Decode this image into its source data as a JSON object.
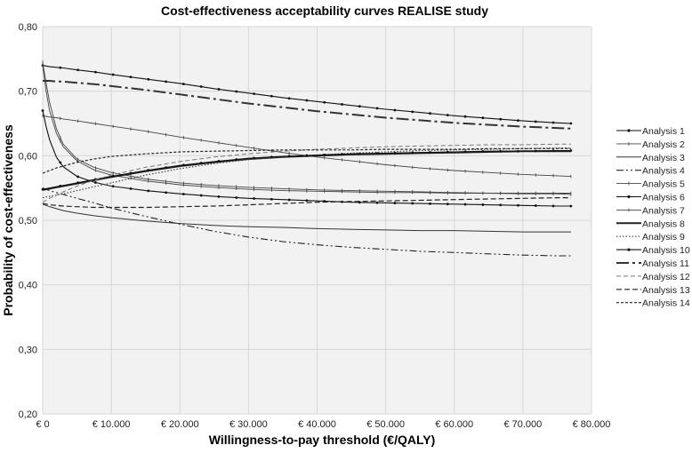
{
  "chart_data": {
    "type": "line",
    "title": "Cost-effectiveness acceptability curves REALISE study",
    "xlabel": "Willingness-to-pay threshold (€/QALY)",
    "ylabel": "Probability of cost-effectiveness",
    "xlim": [
      0,
      80000
    ],
    "ylim": [
      0.2,
      0.8
    ],
    "grid": true,
    "legend_position": "right",
    "x_ticks": [
      0,
      10000,
      20000,
      30000,
      40000,
      50000,
      60000,
      70000,
      80000
    ],
    "x_tick_labels": [
      "€ 0",
      "€ 10.000",
      "€ 20.000",
      "€ 30.000",
      "€ 40.000",
      "€ 50.000",
      "€ 60.000",
      "€ 70.000",
      "€ 80.000"
    ],
    "y_ticks": [
      0.2,
      0.3,
      0.4,
      0.5,
      0.6,
      0.7,
      0.8
    ],
    "y_tick_labels": [
      "0,20",
      "0,30",
      "0,40",
      "0,50",
      "0,60",
      "0,70",
      "0,80"
    ],
    "x": [
      0,
      500,
      1000,
      2000,
      3000,
      5000,
      7500,
      10000,
      15000,
      20000,
      25000,
      30000,
      35000,
      40000,
      45000,
      50000,
      55000,
      60000,
      65000,
      70000,
      75000,
      77000
    ],
    "series": [
      {
        "name": "Analysis 1",
        "style": "solid-dots",
        "values": [
          0.74,
          0.739,
          0.738,
          0.737,
          0.736,
          0.733,
          0.73,
          0.726,
          0.719,
          0.712,
          0.704,
          0.697,
          0.69,
          0.684,
          0.678,
          0.672,
          0.667,
          0.662,
          0.658,
          0.654,
          0.651,
          0.65
        ]
      },
      {
        "name": "Analysis 2",
        "style": "solid-ticks",
        "values": [
          0.662,
          0.661,
          0.66,
          0.659,
          0.657,
          0.654,
          0.65,
          0.646,
          0.638,
          0.629,
          0.621,
          0.613,
          0.605,
          0.598,
          0.592,
          0.586,
          0.581,
          0.577,
          0.574,
          0.571,
          0.569,
          0.568
        ]
      },
      {
        "name": "Analysis 3",
        "style": "solid",
        "values": [
          0.525,
          0.523,
          0.521,
          0.518,
          0.515,
          0.511,
          0.507,
          0.504,
          0.499,
          0.495,
          0.492,
          0.49,
          0.489,
          0.487,
          0.486,
          0.485,
          0.484,
          0.484,
          0.483,
          0.482,
          0.482,
          0.482
        ]
      },
      {
        "name": "Analysis 4",
        "style": "dash-dot-dot",
        "values": [
          0.55,
          0.548,
          0.546,
          0.543,
          0.54,
          0.534,
          0.527,
          0.519,
          0.506,
          0.494,
          0.483,
          0.474,
          0.467,
          0.462,
          0.458,
          0.455,
          0.452,
          0.45,
          0.448,
          0.446,
          0.445,
          0.445
        ]
      },
      {
        "name": "Analysis 5",
        "style": "solid-ticks",
        "values": [
          0.745,
          0.712,
          0.683,
          0.642,
          0.618,
          0.595,
          0.582,
          0.574,
          0.564,
          0.558,
          0.554,
          0.551,
          0.549,
          0.547,
          0.546,
          0.545,
          0.544,
          0.543,
          0.542,
          0.541,
          0.541,
          0.54
        ]
      },
      {
        "name": "Analysis 6",
        "style": "solid-dots",
        "values": [
          0.67,
          0.645,
          0.625,
          0.598,
          0.583,
          0.568,
          0.559,
          0.553,
          0.546,
          0.541,
          0.537,
          0.534,
          0.532,
          0.53,
          0.528,
          0.527,
          0.526,
          0.525,
          0.524,
          0.523,
          0.522,
          0.522
        ]
      },
      {
        "name": "Analysis 7",
        "style": "solid-ticks",
        "values": [
          0.74,
          0.7,
          0.67,
          0.635,
          0.614,
          0.592,
          0.578,
          0.57,
          0.561,
          0.555,
          0.551,
          0.548,
          0.546,
          0.545,
          0.544,
          0.543,
          0.543,
          0.542,
          0.542,
          0.542,
          0.542,
          0.542
        ]
      },
      {
        "name": "Analysis 8",
        "style": "solid-thick",
        "values": [
          0.547,
          0.548,
          0.549,
          0.551,
          0.553,
          0.557,
          0.562,
          0.567,
          0.576,
          0.584,
          0.59,
          0.595,
          0.598,
          0.6,
          0.602,
          0.603,
          0.604,
          0.605,
          0.606,
          0.607,
          0.607,
          0.607
        ]
      },
      {
        "name": "Analysis 9",
        "style": "dotted",
        "values": [
          0.535,
          0.536,
          0.537,
          0.539,
          0.541,
          0.546,
          0.552,
          0.558,
          0.57,
          0.58,
          0.588,
          0.594,
          0.598,
          0.601,
          0.604,
          0.606,
          0.608,
          0.609,
          0.61,
          0.611,
          0.612,
          0.612
        ]
      },
      {
        "name": "Analysis 10",
        "style": "solid-dots",
        "values": [
          0.548,
          0.549,
          0.55,
          0.552,
          0.554,
          0.558,
          0.563,
          0.568,
          0.577,
          0.585,
          0.591,
          0.596,
          0.599,
          0.601,
          0.603,
          0.604,
          0.605,
          0.606,
          0.607,
          0.607,
          0.608,
          0.608
        ]
      },
      {
        "name": "Analysis 11",
        "style": "long-dash-dot",
        "values": [
          0.716,
          0.716,
          0.716,
          0.715,
          0.715,
          0.713,
          0.711,
          0.708,
          0.702,
          0.695,
          0.688,
          0.681,
          0.675,
          0.669,
          0.664,
          0.659,
          0.655,
          0.651,
          0.648,
          0.645,
          0.643,
          0.642
        ]
      },
      {
        "name": "Analysis 12",
        "style": "dashed-light",
        "values": [
          0.528,
          0.531,
          0.534,
          0.539,
          0.544,
          0.553,
          0.562,
          0.57,
          0.582,
          0.591,
          0.598,
          0.603,
          0.607,
          0.61,
          0.612,
          0.614,
          0.615,
          0.616,
          0.617,
          0.617,
          0.618,
          0.618
        ]
      },
      {
        "name": "Analysis 13",
        "style": "dashed",
        "values": [
          0.526,
          0.525,
          0.524,
          0.523,
          0.522,
          0.521,
          0.52,
          0.52,
          0.52,
          0.521,
          0.522,
          0.524,
          0.526,
          0.528,
          0.529,
          0.53,
          0.531,
          0.532,
          0.533,
          0.534,
          0.535,
          0.535
        ]
      },
      {
        "name": "Analysis 14",
        "style": "short-dash",
        "values": [
          0.573,
          0.575,
          0.577,
          0.581,
          0.584,
          0.59,
          0.595,
          0.599,
          0.603,
          0.606,
          0.607,
          0.608,
          0.609,
          0.609,
          0.609,
          0.61,
          0.61,
          0.61,
          0.611,
          0.611,
          0.611,
          0.611
        ]
      }
    ]
  }
}
